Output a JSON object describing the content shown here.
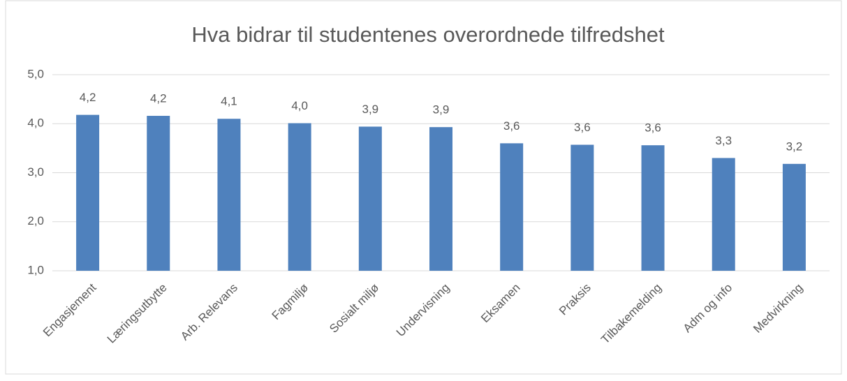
{
  "chart_data": {
    "type": "bar",
    "title": "Hva bidrar til studentenes overordnede tilfredshet",
    "categories": [
      "Engasjement",
      "Læringsutbytte",
      "Arb. Relevans",
      "Fagmiljø",
      "Sosialt miljø",
      "Undervisning",
      "Eksamen",
      "Praksis",
      "Tilbakemelding",
      "Adm og info",
      "Medvirkning"
    ],
    "values": [
      4.18,
      4.16,
      4.1,
      4.01,
      3.94,
      3.93,
      3.6,
      3.57,
      3.56,
      3.3,
      3.18
    ],
    "value_labels": [
      "4,2",
      "4,2",
      "4,1",
      "4,0",
      "3,9",
      "3,9",
      "3,6",
      "3,6",
      "3,6",
      "3,3",
      "3,2"
    ],
    "color": "#4f81bd",
    "ylim": [
      1,
      5
    ],
    "yticks": [
      {
        "value": 1,
        "label": "1,0"
      },
      {
        "value": 2,
        "label": "2,0"
      },
      {
        "value": 3,
        "label": "3,0"
      },
      {
        "value": 4,
        "label": "4,0"
      },
      {
        "value": 5,
        "label": "5,0"
      }
    ],
    "grid": true
  }
}
